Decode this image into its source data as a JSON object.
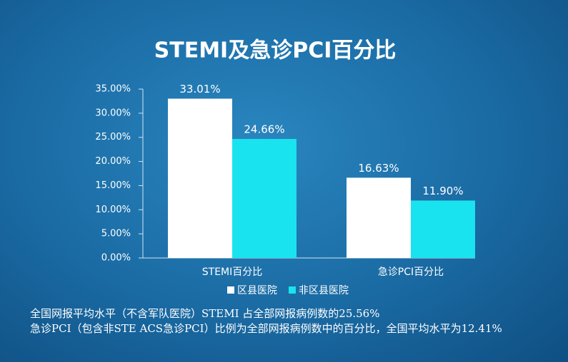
{
  "chart_data": {
    "type": "bar",
    "title": "STEMI及急诊PCI百分比",
    "categories": [
      "STEMI百分比",
      "急诊PCI百分比"
    ],
    "series": [
      {
        "name": "区县医院",
        "color": "#ffffff",
        "values": [
          33.01,
          16.63
        ],
        "value_labels": [
          "33.01%",
          "16.63%"
        ]
      },
      {
        "name": "非区县医院",
        "color": "#19e3ee",
        "values": [
          24.66,
          11.9
        ],
        "value_labels": [
          "24.66%",
          "11.90%"
        ]
      }
    ],
    "ylim": [
      0,
      35
    ],
    "yticks": [
      {
        "value": 0,
        "label": "0.00%"
      },
      {
        "value": 5,
        "label": "5.00%"
      },
      {
        "value": 10,
        "label": "10.00%"
      },
      {
        "value": 15,
        "label": "15.00%"
      },
      {
        "value": 20,
        "label": "20.00%"
      },
      {
        "value": 25,
        "label": "25.00%"
      },
      {
        "value": 30,
        "label": "30.00%"
      },
      {
        "value": 35,
        "label": "35.00%"
      }
    ],
    "grid": false,
    "legend": "bottom",
    "notes": [
      "全国网报平均水平（不含军队医院）STEMI 占全部网报病例数的25.56%",
      "急诊PCI（包含非STE ACS急诊PCI）比例为全部网报病例数中的百分比，全国平均水平为12.41%"
    ]
  }
}
